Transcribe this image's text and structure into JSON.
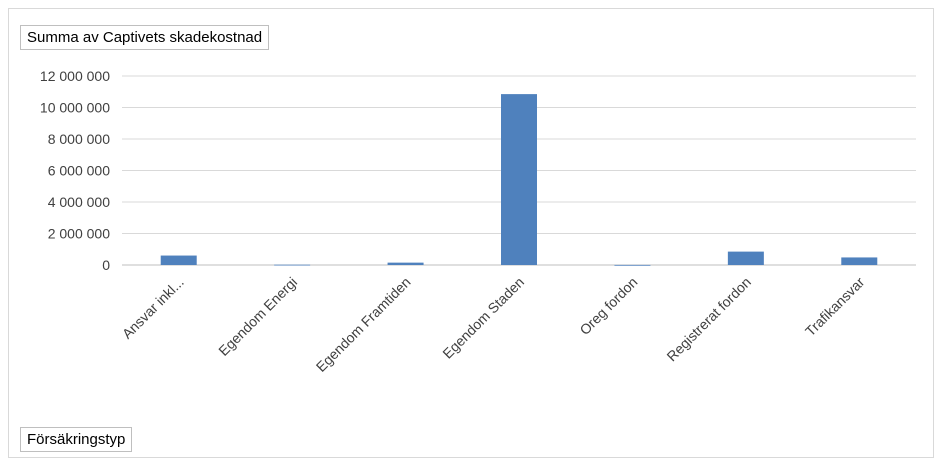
{
  "chart_data": {
    "type": "bar",
    "value_field": "Summa av Captivets skadekostnad",
    "axis_field": "Försäkringstyp",
    "categories": [
      "Ansvar inkl...",
      "Egendom Energi",
      "Egendom Framtiden",
      "Egendom Staden",
      "Oreg fordon",
      "Registrerat fordon",
      "Trafikansvar"
    ],
    "values": [
      600000,
      20000,
      150000,
      10850000,
      5000,
      850000,
      480000
    ],
    "ylim": [
      0,
      12000000
    ],
    "yticks": [
      0,
      2000000,
      4000000,
      6000000,
      8000000,
      10000000,
      12000000
    ],
    "ytick_labels": [
      "0",
      "2 000 000",
      "4 000 000",
      "6 000 000",
      "8 000 000",
      "10 000 000",
      "12 000 000"
    ],
    "grid": true,
    "legend": "none",
    "bar_color": "#4f81bd",
    "grid_color": "#d9d9d9",
    "axis_color": "#bfbfbf"
  }
}
